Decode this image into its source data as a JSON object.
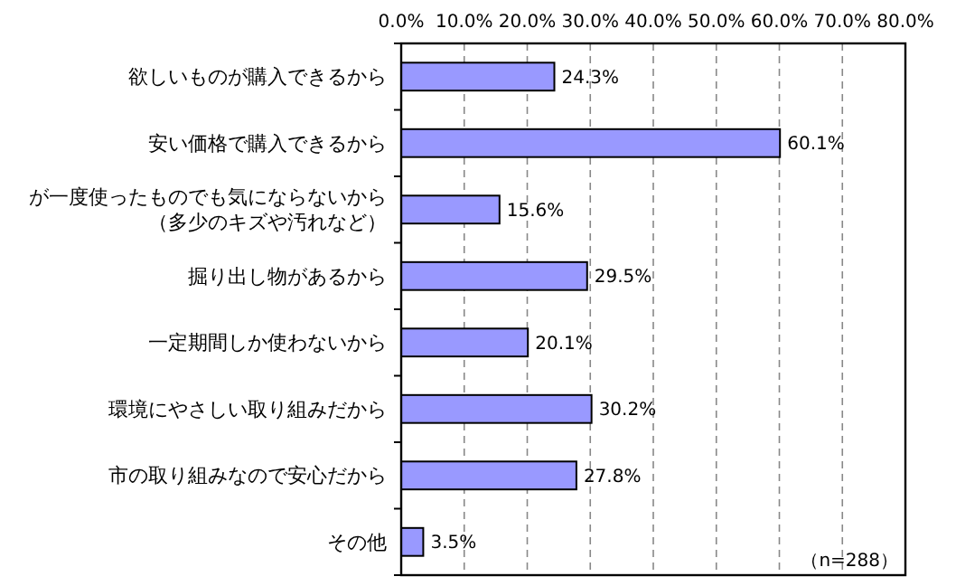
{
  "chart_data": {
    "type": "bar",
    "orientation": "horizontal",
    "categories": [
      "欲しいものが購入できるから",
      "安い価格で購入できるから",
      "が一度使ったものでも気にならないから（多少のキズや汚れなど）",
      "掘り出し物があるから",
      "一定期間しか使わないから",
      "環境にやさしい取り組みだから",
      "市の取り組みなので安心だから",
      "その他"
    ],
    "values": [
      24.3,
      60.1,
      15.6,
      29.5,
      20.1,
      30.2,
      27.8,
      3.5
    ],
    "value_labels": [
      "24.3%",
      "60.1%",
      "15.6%",
      "29.5%",
      "20.1%",
      "30.2%",
      "27.8%",
      "3.5%"
    ],
    "color": "#9999ff",
    "xlim": [
      0,
      80
    ],
    "xticks": [
      {
        "value": 0,
        "label": "0.0%"
      },
      {
        "value": 10,
        "label": "10.0%"
      },
      {
        "value": 20,
        "label": "20.0%"
      },
      {
        "value": 30,
        "label": "30.0%"
      },
      {
        "value": 40,
        "label": "40.0%"
      },
      {
        "value": 50,
        "label": "50.0%"
      },
      {
        "value": 60,
        "label": "60.0%"
      },
      {
        "value": 70,
        "label": "70.0%"
      },
      {
        "value": 80,
        "label": "80.0%"
      }
    ],
    "grid": "x",
    "annotations": [
      "（n=288）"
    ]
  }
}
